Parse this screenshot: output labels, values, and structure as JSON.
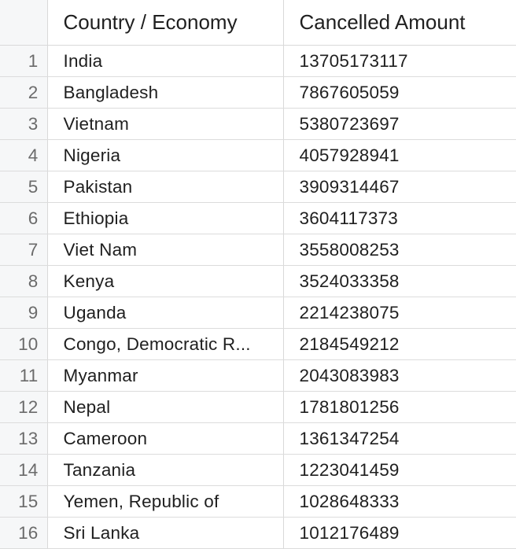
{
  "table": {
    "columns": [
      "",
      "Country / Economy",
      "Cancelled Amount"
    ],
    "rows": [
      {
        "index": "1",
        "country": "India",
        "amount": "13705173117"
      },
      {
        "index": "2",
        "country": "Bangladesh",
        "amount": "7867605059"
      },
      {
        "index": "3",
        "country": "Vietnam",
        "amount": "5380723697"
      },
      {
        "index": "4",
        "country": "Nigeria",
        "amount": "4057928941"
      },
      {
        "index": "5",
        "country": "Pakistan",
        "amount": "3909314467"
      },
      {
        "index": "6",
        "country": "Ethiopia",
        "amount": "3604117373"
      },
      {
        "index": "7",
        "country": "Viet Nam",
        "amount": "3558008253"
      },
      {
        "index": "8",
        "country": "Kenya",
        "amount": "3524033358"
      },
      {
        "index": "9",
        "country": "Uganda",
        "amount": "2214238075"
      },
      {
        "index": "10",
        "country": "Congo, Democratic R...",
        "amount": "2184549212"
      },
      {
        "index": "11",
        "country": "Myanmar",
        "amount": "2043083983"
      },
      {
        "index": "12",
        "country": "Nepal",
        "amount": "1781801256"
      },
      {
        "index": "13",
        "country": "Cameroon",
        "amount": "1361347254"
      },
      {
        "index": "14",
        "country": "Tanzania",
        "amount": "1223041459"
      },
      {
        "index": "15",
        "country": "Yemen, Republic of",
        "amount": "1028648333"
      },
      {
        "index": "16",
        "country": "Sri Lanka",
        "amount": "1012176489"
      }
    ]
  }
}
